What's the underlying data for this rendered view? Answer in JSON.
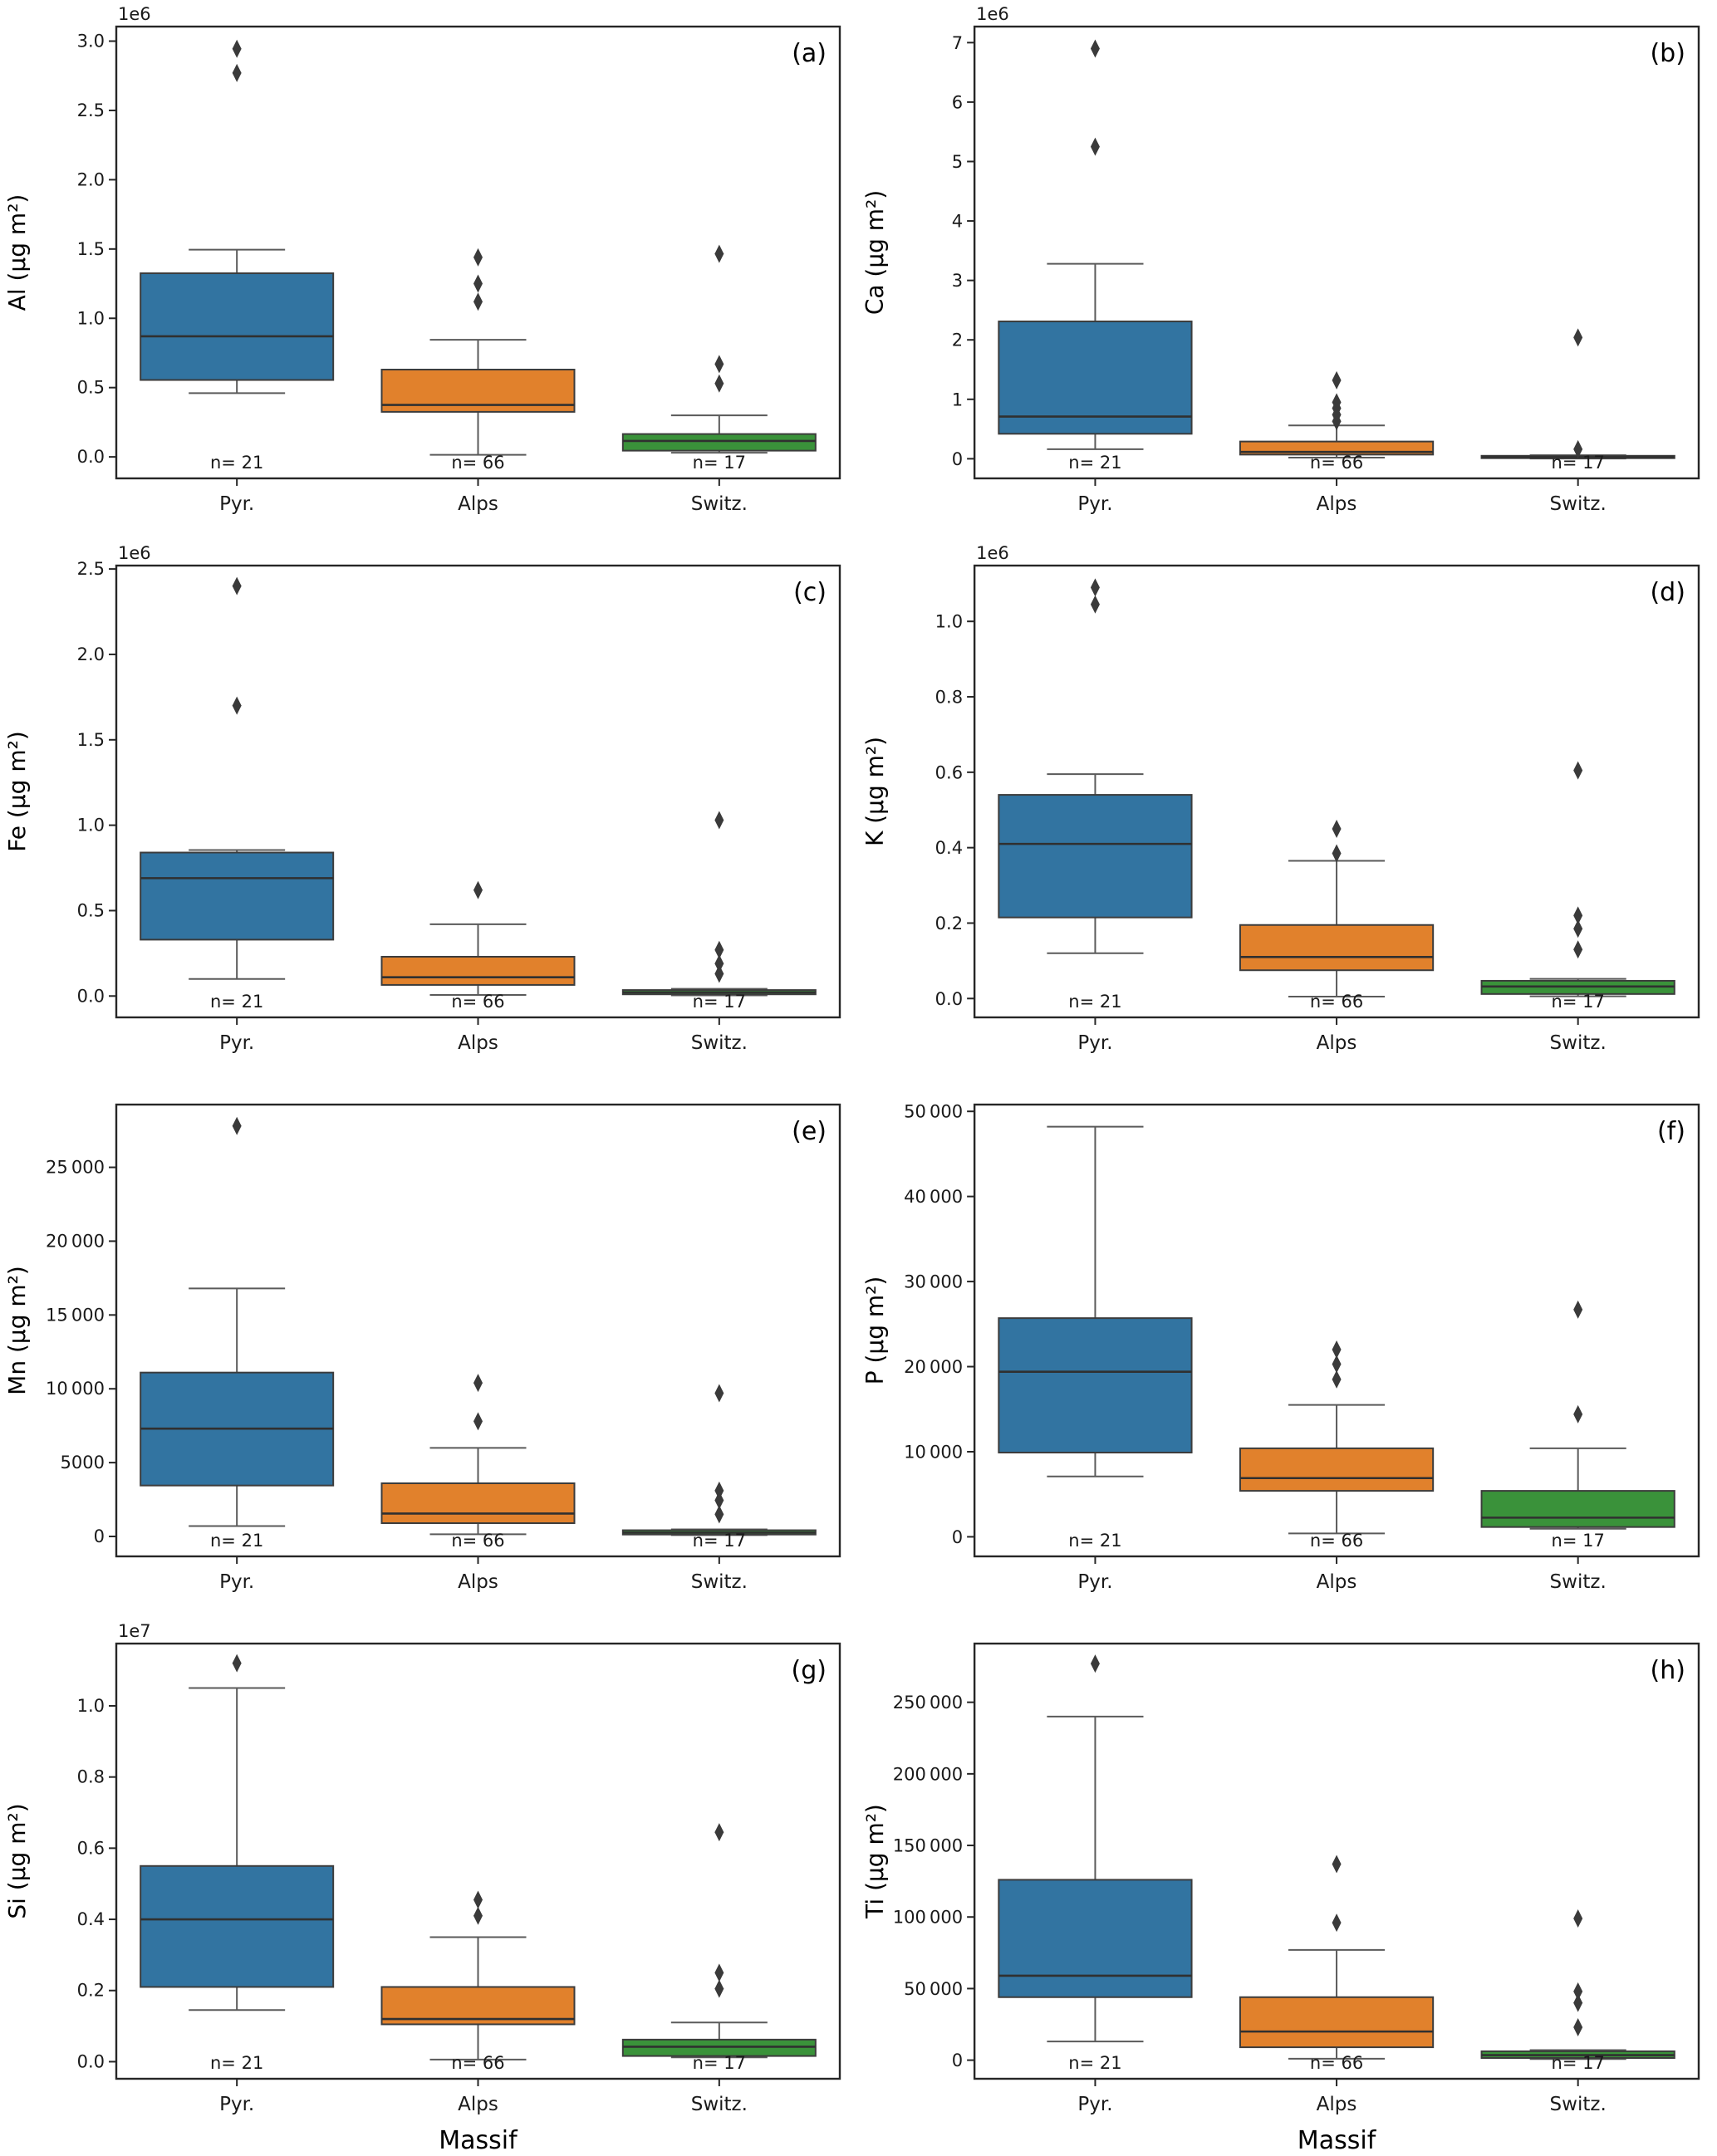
{
  "figure": {
    "background": "#ffffff",
    "xlabel": "Massif",
    "categories": [
      "Pyr.",
      "Alps",
      "Switz."
    ],
    "sample_size_labels": [
      "n= 21",
      "n= 66",
      "n= 17"
    ],
    "palette": [
      "#3274a1",
      "#e1812c",
      "#3a923a"
    ],
    "box_edge_color": "#3c3c3c",
    "median_color": "#303030",
    "whisker_color": "#5a5a5a",
    "flier_color": "#3a3a3a",
    "spine_color": "#262626",
    "tick_color": "#262626"
  },
  "chart_data": [
    {
      "type": "box",
      "panel_label": "(a)",
      "ylabel": "Al (µg m²)",
      "offset_label": "1e6",
      "ylim": [
        -0.155,
        3.105
      ],
      "yticks": [
        0,
        0.5,
        1.0,
        1.5,
        2.0,
        2.5,
        3.0
      ],
      "ytick_labels": [
        "0.0",
        "0.5",
        "1.0",
        "1.5",
        "2.0",
        "2.5",
        "3.0"
      ],
      "show_xlabel": false,
      "series": [
        {
          "group": "Pyr.",
          "whislo": 0.46,
          "q1": 0.555,
          "med": 0.87,
          "q3": 1.325,
          "whishi": 1.495,
          "outliers": [
            2.77,
            2.945
          ]
        },
        {
          "group": "Alps",
          "whislo": 0.015,
          "q1": 0.325,
          "med": 0.375,
          "q3": 0.63,
          "whishi": 0.845,
          "outliers": [
            1.12,
            1.25,
            1.44
          ]
        },
        {
          "group": "Switz.",
          "whislo": 0.03,
          "q1": 0.045,
          "med": 0.115,
          "q3": 0.165,
          "whishi": 0.3,
          "outliers": [
            0.53,
            0.67,
            1.465
          ]
        }
      ]
    },
    {
      "type": "box",
      "panel_label": "(b)",
      "ylabel": "Ca (µg m²)",
      "offset_label": "1e6",
      "ylim": [
        -0.33,
        7.27
      ],
      "yticks": [
        0,
        1,
        2,
        3,
        4,
        5,
        6,
        7
      ],
      "ytick_labels": [
        "0",
        "1",
        "2",
        "3",
        "4",
        "5",
        "6",
        "7"
      ],
      "show_xlabel": false,
      "series": [
        {
          "group": "Pyr.",
          "whislo": 0.16,
          "q1": 0.42,
          "med": 0.71,
          "q3": 2.31,
          "whishi": 3.28,
          "outliers": [
            5.25,
            6.9
          ]
        },
        {
          "group": "Alps",
          "whislo": 0.02,
          "q1": 0.07,
          "med": 0.115,
          "q3": 0.29,
          "whishi": 0.56,
          "outliers": [
            0.63,
            0.74,
            0.85,
            0.95,
            1.32
          ]
        },
        {
          "group": "Switz.",
          "whislo": 0.004,
          "q1": 0.01,
          "med": 0.028,
          "q3": 0.05,
          "whishi": 0.06,
          "outliers": [
            0.16,
            2.04
          ]
        }
      ]
    },
    {
      "type": "box",
      "panel_label": "(c)",
      "ylabel": "Fe (µg m²)",
      "offset_label": "1e6",
      "ylim": [
        -0.125,
        2.52
      ],
      "yticks": [
        0,
        0.5,
        1.0,
        1.5,
        2.0,
        2.5
      ],
      "ytick_labels": [
        "0.0",
        "0.5",
        "1.0",
        "1.5",
        "2.0",
        "2.5"
      ],
      "show_xlabel": false,
      "series": [
        {
          "group": "Pyr.",
          "whislo": 0.1,
          "q1": 0.33,
          "med": 0.69,
          "q3": 0.84,
          "whishi": 0.855,
          "outliers": [
            1.7,
            2.4
          ]
        },
        {
          "group": "Alps",
          "whislo": 0.006,
          "q1": 0.065,
          "med": 0.11,
          "q3": 0.23,
          "whishi": 0.42,
          "outliers": [
            0.62
          ]
        },
        {
          "group": "Switz.",
          "whislo": 0.004,
          "q1": 0.01,
          "med": 0.021,
          "q3": 0.035,
          "whishi": 0.042,
          "outliers": [
            0.13,
            0.19,
            0.27,
            1.03
          ]
        }
      ]
    },
    {
      "type": "box",
      "panel_label": "(d)",
      "ylabel": "K (µg m²)",
      "offset_label": "1e6",
      "ylim": [
        -0.05,
        1.148
      ],
      "yticks": [
        0,
        0.2,
        0.4,
        0.6,
        0.8,
        1.0
      ],
      "ytick_labels": [
        "0.0",
        "0.2",
        "0.4",
        "0.6",
        "0.8",
        "1.0"
      ],
      "show_xlabel": false,
      "series": [
        {
          "group": "Pyr.",
          "whislo": 0.12,
          "q1": 0.215,
          "med": 0.41,
          "q3": 0.54,
          "whishi": 0.595,
          "outliers": [
            1.045,
            1.09
          ]
        },
        {
          "group": "Alps",
          "whislo": 0.005,
          "q1": 0.075,
          "med": 0.11,
          "q3": 0.195,
          "whishi": 0.365,
          "outliers": [
            0.385,
            0.45
          ]
        },
        {
          "group": "Switz.",
          "whislo": 0.006,
          "q1": 0.012,
          "med": 0.032,
          "q3": 0.047,
          "whishi": 0.052,
          "outliers": [
            0.13,
            0.185,
            0.22,
            0.605
          ]
        }
      ]
    },
    {
      "type": "box",
      "panel_label": "(e)",
      "ylabel": "Mn (µg m²)",
      "offset_label": null,
      "ylim": [
        -1350,
        29250
      ],
      "yticks": [
        0,
        5000,
        10000,
        15000,
        20000,
        25000
      ],
      "ytick_labels": [
        "0",
        "5000",
        "10 000",
        "15 000",
        "20 000",
        "25 000"
      ],
      "show_xlabel": false,
      "series": [
        {
          "group": "Pyr.",
          "whislo": 700,
          "q1": 3450,
          "med": 7300,
          "q3": 11100,
          "whishi": 16800,
          "outliers": [
            27800
          ]
        },
        {
          "group": "Alps",
          "whislo": 150,
          "q1": 900,
          "med": 1550,
          "q3": 3600,
          "whishi": 6000,
          "outliers": [
            7800,
            10400
          ]
        },
        {
          "group": "Switz.",
          "whislo": 90,
          "q1": 130,
          "med": 260,
          "q3": 420,
          "whishi": 480,
          "outliers": [
            1500,
            2450,
            3100,
            9700
          ]
        }
      ]
    },
    {
      "type": "box",
      "panel_label": "(f)",
      "ylabel": "P (µg m²)",
      "offset_label": null,
      "ylim": [
        -2300,
        50800
      ],
      "yticks": [
        0,
        10000,
        20000,
        30000,
        40000,
        50000
      ],
      "ytick_labels": [
        "0",
        "10 000",
        "20 000",
        "30 000",
        "40 000",
        "50 000"
      ],
      "show_xlabel": false,
      "series": [
        {
          "group": "Pyr.",
          "whislo": 7100,
          "q1": 9900,
          "med": 19400,
          "q3": 25700,
          "whishi": 48200,
          "outliers": []
        },
        {
          "group": "Alps",
          "whislo": 400,
          "q1": 5400,
          "med": 6900,
          "q3": 10400,
          "whishi": 15500,
          "outliers": [
            18500,
            20300,
            22000
          ]
        },
        {
          "group": "Switz.",
          "whislo": 950,
          "q1": 1150,
          "med": 2250,
          "q3": 5400,
          "whishi": 10400,
          "outliers": [
            14400,
            26700
          ]
        }
      ]
    },
    {
      "type": "box",
      "panel_label": "(g)",
      "ylabel": "Si (µg m²)",
      "offset_label": "1e7",
      "ylim": [
        -0.048,
        1.175
      ],
      "yticks": [
        0,
        0.2,
        0.4,
        0.6,
        0.8,
        1.0
      ],
      "ytick_labels": [
        "0.0",
        "0.2",
        "0.4",
        "0.6",
        "0.8",
        "1.0"
      ],
      "show_xlabel": true,
      "series": [
        {
          "group": "Pyr.",
          "whislo": 0.145,
          "q1": 0.21,
          "med": 0.4,
          "q3": 0.55,
          "whishi": 1.05,
          "outliers": [
            1.12
          ]
        },
        {
          "group": "Alps",
          "whislo": 0.006,
          "q1": 0.105,
          "med": 0.12,
          "q3": 0.21,
          "whishi": 0.35,
          "outliers": [
            0.41,
            0.455
          ]
        },
        {
          "group": "Switz.",
          "whislo": 0.012,
          "q1": 0.016,
          "med": 0.042,
          "q3": 0.062,
          "whishi": 0.11,
          "outliers": [
            0.205,
            0.25,
            0.645
          ]
        }
      ]
    },
    {
      "type": "box",
      "panel_label": "(h)",
      "ylabel": "Ti (µg m²)",
      "offset_label": null,
      "ylim": [
        -13000,
        291000
      ],
      "yticks": [
        0,
        50000,
        100000,
        150000,
        200000,
        250000
      ],
      "ytick_labels": [
        "0",
        "50 000",
        "100 000",
        "150 000",
        "200 000",
        "250 000"
      ],
      "show_xlabel": true,
      "series": [
        {
          "group": "Pyr.",
          "whislo": 13000,
          "q1": 44000,
          "med": 59000,
          "q3": 126000,
          "whishi": 240000,
          "outliers": [
            277000
          ]
        },
        {
          "group": "Alps",
          "whislo": 1000,
          "q1": 9000,
          "med": 20000,
          "q3": 44000,
          "whishi": 77000,
          "outliers": [
            96000,
            137000
          ]
        },
        {
          "group": "Switz.",
          "whislo": 800,
          "q1": 1500,
          "med": 3500,
          "q3": 6200,
          "whishi": 7000,
          "outliers": [
            23000,
            40000,
            48000,
            99000
          ]
        }
      ]
    }
  ]
}
